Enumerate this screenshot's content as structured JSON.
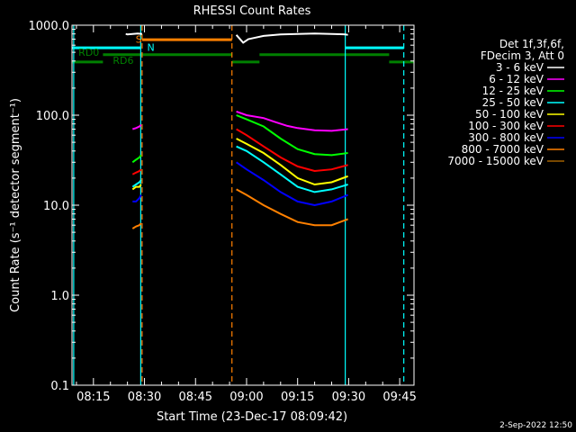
{
  "chart_data": {
    "type": "line",
    "title": "RHESSI Count Rates",
    "xlabel": "Start Time (23-Dec-17 08:09:42)",
    "ylabel": "Count Rate (s⁻¹ detector segment⁻¹)",
    "y_scale": "log",
    "ylim": [
      0.1,
      1000
    ],
    "xlim_minutes": [
      488.7,
      589.2
    ],
    "x_ticks": [
      {
        "m": 495,
        "label": "08:15"
      },
      {
        "m": 510,
        "label": "08:30"
      },
      {
        "m": 525,
        "label": "08:45"
      },
      {
        "m": 540,
        "label": "09:00"
      },
      {
        "m": 555,
        "label": "09:15"
      },
      {
        "m": 570,
        "label": "09:30"
      },
      {
        "m": 585,
        "label": "09:45"
      }
    ],
    "y_ticks": [
      {
        "v": 1000,
        "label": "1000.0"
      },
      {
        "v": 100,
        "label": "100.0"
      },
      {
        "v": 10,
        "label": "10.0"
      },
      {
        "v": 1,
        "label": "1.0"
      },
      {
        "v": 0.1,
        "label": "0.1"
      }
    ],
    "legend_header": [
      "Det 1f,3f,6f,",
      "FDecim 3, Att 0"
    ],
    "legend_position": "right",
    "series": [
      {
        "name": "3 - 6 keV",
        "color": "#ffffff",
        "segments": [
          {
            "x": [
              504.5,
              505.0,
              506.5,
              508.0,
              509.3
            ],
            "y": [
              800,
              790,
              800,
              810,
              800
            ]
          },
          {
            "x": [
              537.0,
              539.0,
              540.5,
              542.0,
              545.0,
              550.0,
              555.0,
              560.0,
              565.0,
              569.0,
              569.8
            ],
            "y": [
              780,
              640,
              700,
              720,
              760,
              790,
              800,
              810,
              800,
              790,
              780
            ]
          }
        ]
      },
      {
        "name": "6 - 12 keV",
        "color": "#ff00ff",
        "segments": [
          {
            "x": [
              506.5,
              507.5,
              508.5,
              509.0
            ],
            "y": [
              70,
              72,
              75,
              78
            ]
          },
          {
            "x": [
              537.0,
              540.0,
              545.0,
              548.0,
              552.0,
              555.0,
              560.0,
              565.0,
              569.8
            ],
            "y": [
              110,
              100,
              93,
              85,
              76,
              72,
              68,
              67,
              70
            ]
          }
        ]
      },
      {
        "name": "12 - 25 keV",
        "color": "#00ff00",
        "segments": [
          {
            "x": [
              506.5,
              507.5,
              508.5,
              509.0
            ],
            "y": [
              30,
              32,
              34,
              36
            ]
          },
          {
            "x": [
              537.0,
              540.0,
              545.0,
              550.0,
              555.0,
              560.0,
              565.0,
              569.8
            ],
            "y": [
              100,
              90,
              75,
              55,
              42,
              37,
              36,
              38
            ]
          }
        ]
      },
      {
        "name": "25 - 50 keV",
        "color": "#00ffff",
        "segments": [
          {
            "x": [
              506.5,
              507.5,
              508.5,
              509.0
            ],
            "y": [
              16,
              17,
              18,
              19
            ]
          },
          {
            "x": [
              537.0,
              540.0,
              545.0,
              550.0,
              555.0,
              560.0,
              565.0,
              569.8
            ],
            "y": [
              45,
              40,
              30,
              22,
              16,
              14,
              15,
              17
            ]
          }
        ]
      },
      {
        "name": "50 - 100 keV",
        "color": "#ffff00",
        "segments": [
          {
            "x": [
              506.5,
              507.5,
              508.5,
              509.0
            ],
            "y": [
              15,
              16,
              16,
              17
            ]
          },
          {
            "x": [
              537.0,
              540.0,
              545.0,
              550.0,
              555.0,
              560.0,
              565.0,
              569.8
            ],
            "y": [
              55,
              48,
              38,
              28,
              20,
              17,
              18,
              21
            ]
          }
        ]
      },
      {
        "name": "100 - 300 keV",
        "color": "#ff0000",
        "segments": [
          {
            "x": [
              506.5,
              507.5,
              508.5,
              509.0
            ],
            "y": [
              22,
              23,
              24,
              25
            ]
          },
          {
            "x": [
              537.0,
              540.0,
              545.0,
              550.0,
              555.0,
              560.0,
              565.0,
              569.8
            ],
            "y": [
              70,
              60,
              45,
              34,
              27,
              24,
              25,
              28
            ]
          }
        ]
      },
      {
        "name": "300 - 800 keV",
        "color": "#0000ff",
        "segments": [
          {
            "x": [
              506.5,
              507.5,
              508.5,
              509.0
            ],
            "y": [
              11,
              11,
              12,
              13
            ]
          },
          {
            "x": [
              537.0,
              540.0,
              545.0,
              550.0,
              555.0,
              560.0,
              565.0,
              569.8
            ],
            "y": [
              30,
              25,
              19,
              14,
              11,
              10,
              11,
              13
            ]
          }
        ]
      },
      {
        "name": "800 - 7000 keV",
        "color": "#ff8000",
        "segments": [
          {
            "x": [
              506.5,
              507.5,
              508.5,
              509.0
            ],
            "y": [
              5.5,
              5.8,
              6.0,
              6.3
            ]
          },
          {
            "x": [
              537.0,
              540.0,
              545.0,
              550.0,
              555.0,
              560.0,
              565.0,
              569.8
            ],
            "y": [
              15,
              13,
              10,
              8,
              6.5,
              6,
              6,
              7
            ]
          }
        ]
      },
      {
        "name": "7000 - 15000 keV",
        "color": "#a06000",
        "segments": []
      }
    ],
    "markers": {
      "vertical_lines": [
        {
          "m": 489.2,
          "color": "#00ffff",
          "dash": false
        },
        {
          "m": 508.9,
          "color": "#00ffff",
          "dash": false
        },
        {
          "m": 509.3,
          "color": "#ff8000",
          "dash": true
        },
        {
          "m": 535.7,
          "color": "#ff8000",
          "dash": true
        },
        {
          "m": 569.0,
          "color": "#00ffff",
          "dash": false
        },
        {
          "m": 586.2,
          "color": "#00ffff",
          "dash": true
        }
      ],
      "bars": [
        {
          "name": "attenuator-cyan-bar",
          "x0": 488.7,
          "x1": 508.9,
          "y": 560,
          "color": "#00ffff",
          "width": 3
        },
        {
          "name": "attenuator-cyan-bar",
          "x0": 569.0,
          "x1": 586.2,
          "y": 560,
          "color": "#00ffff",
          "width": 3
        },
        {
          "name": "saa-orange-bar",
          "x0": 509.3,
          "x1": 535.7,
          "y": 690,
          "color": "#ff8000",
          "width": 3
        },
        {
          "name": "decimation-green-bar",
          "x0": 488.7,
          "x1": 497.8,
          "y": 390,
          "color": "#008000",
          "width": 3
        },
        {
          "name": "decimation-green-bar",
          "x0": 497.8,
          "x1": 535.7,
          "y": 470,
          "color": "#008000",
          "width": 3
        },
        {
          "name": "decimation-green-bar",
          "x0": 535.7,
          "x1": 543.8,
          "y": 390,
          "color": "#008000",
          "width": 3
        },
        {
          "name": "decimation-green-bar",
          "x0": 543.8,
          "x1": 581.9,
          "y": 470,
          "color": "#008000",
          "width": 3
        },
        {
          "name": "decimation-green-bar",
          "x0": 581.9,
          "x1": 589.2,
          "y": 390,
          "color": "#008000",
          "width": 3
        }
      ],
      "labels": [
        {
          "text": "RD0",
          "m": 490.6,
          "y": 455,
          "color": "#008000"
        },
        {
          "text": "RD6",
          "m": 500.7,
          "y": 370,
          "color": "#008000"
        },
        {
          "text": "S",
          "m": 507.4,
          "y": 640,
          "color": "#ff8000"
        },
        {
          "text": "N",
          "m": 510.8,
          "y": 520,
          "color": "#00ffff"
        }
      ]
    }
  },
  "footer": {
    "date": "2-Sep-2022 12:50"
  }
}
